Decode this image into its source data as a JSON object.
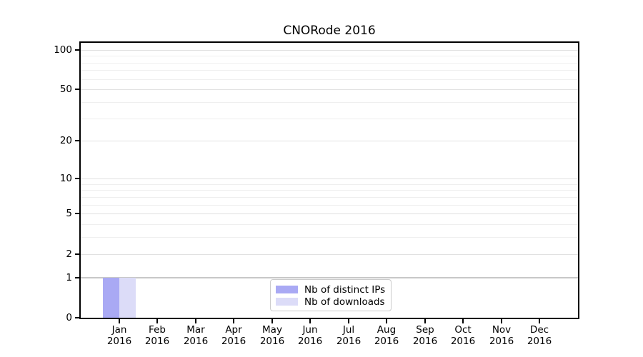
{
  "title": "CNORode 2016",
  "chart_data": {
    "type": "bar",
    "title": "CNORode 2016",
    "x_categories": [
      "Jan",
      "Feb",
      "Mar",
      "Apr",
      "May",
      "Jun",
      "Jul",
      "Aug",
      "Sep",
      "Oct",
      "Nov",
      "Dec"
    ],
    "x_year": "2016",
    "series": [
      {
        "name": "Nb of distinct IPs",
        "color": "#a9a9f4",
        "values": [
          1,
          0,
          0,
          0,
          0,
          0,
          0,
          0,
          0,
          0,
          0,
          0
        ]
      },
      {
        "name": "Nb of downloads",
        "color": "#dcdcf8",
        "values": [
          1,
          0,
          0,
          0,
          0,
          0,
          0,
          0,
          0,
          0,
          0,
          0
        ]
      }
    ],
    "y_axis": {
      "scale": "log10(1+value)",
      "major_ticks": [
        0,
        1,
        2,
        5,
        10,
        20,
        50,
        100
      ],
      "minor_gridlines": [
        3,
        4,
        6,
        7,
        8,
        9,
        30,
        40,
        60,
        70,
        80,
        90
      ],
      "top_value": 110
    },
    "grid": "horizontal",
    "legend_position": "bottom-center"
  },
  "legend": {
    "items": [
      {
        "label": "Nb of distinct IPs",
        "color": "#a9a9f4"
      },
      {
        "label": "Nb of downloads",
        "color": "#dcdcf8"
      }
    ]
  },
  "colors": {
    "background": "#ffffff",
    "axis": "#000000",
    "text": "#000000",
    "grid_major": "#e1e1e1",
    "grid_minor": "#efefef",
    "grid_level_one": "#c8c8c8",
    "legend_border": "#cccccc"
  }
}
